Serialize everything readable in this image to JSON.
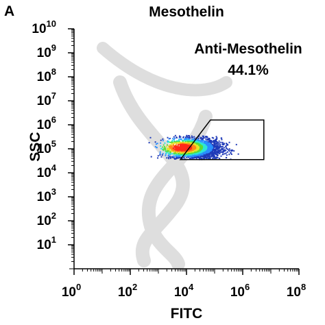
{
  "panel": {
    "letter": "A"
  },
  "chart_data": {
    "type": "scatter",
    "subtype": "flow-cytometry-density-dot-plot",
    "title": "Mesothelin",
    "xlabel": "FITC",
    "ylabel": "SSC",
    "xscale": "log",
    "yscale": "log",
    "xlim": [
      1,
      100000000
    ],
    "ylim": [
      1,
      10000000000
    ],
    "x_ticks": [
      {
        "base": "10",
        "exp": "0",
        "value": 1
      },
      {
        "base": "10",
        "exp": "2",
        "value": 100
      },
      {
        "base": "10",
        "exp": "4",
        "value": 10000
      },
      {
        "base": "10",
        "exp": "6",
        "value": 1000000
      },
      {
        "base": "10",
        "exp": "8",
        "value": 100000000
      }
    ],
    "y_ticks": [
      {
        "base": "10",
        "exp": "1",
        "value": 10
      },
      {
        "base": "10",
        "exp": "2",
        "value": 100
      },
      {
        "base": "10",
        "exp": "3",
        "value": 1000
      },
      {
        "base": "10",
        "exp": "4",
        "value": 10000
      },
      {
        "base": "10",
        "exp": "5",
        "value": 100000
      },
      {
        "base": "10",
        "exp": "6",
        "value": 1000000
      },
      {
        "base": "10",
        "exp": "7",
        "value": 10000000
      },
      {
        "base": "10",
        "exp": "8",
        "value": 100000000
      },
      {
        "base": "10",
        "exp": "9",
        "value": 1000000000
      },
      {
        "base": "10",
        "exp": "10",
        "value": 10000000000
      }
    ],
    "population": {
      "x_center_log10": 4.3,
      "y_center_log10": 5.0,
      "x_spread_log10": 0.85,
      "y_spread_log10": 0.22,
      "x_range_log10": [
        2.55,
        5.85
      ],
      "y_range_log10": [
        4.55,
        5.55
      ],
      "core_log10": [
        3.85,
        5.05
      ]
    },
    "gate": {
      "name": "Anti-Mesothelin",
      "percent": "44.1%",
      "vertices_log10": [
        [
          3.78,
          4.55
        ],
        [
          4.85,
          6.2
        ],
        [
          6.75,
          6.2
        ],
        [
          6.75,
          4.55
        ]
      ]
    },
    "colors": {
      "density": [
        "#1f3ab8",
        "#2a8fff",
        "#2ee6d6",
        "#5bdc3a",
        "#e6e62a",
        "#ff8a1a",
        "#ff2a1a"
      ],
      "axes": "#000000",
      "gate": "#000000",
      "watermark": "#dedede"
    },
    "grid": false,
    "legend": "none"
  }
}
